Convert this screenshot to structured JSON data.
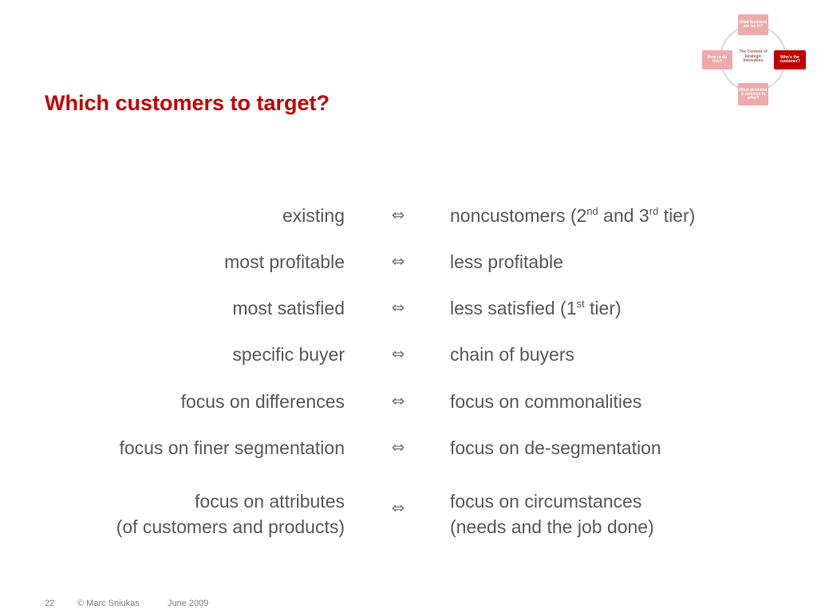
{
  "title": "Which customers to target?",
  "diagram": {
    "top": "What business are we in?",
    "right": "Who's the customer?",
    "bottom": "What products & services to offer?",
    "left": "How to do this?",
    "center": "The Content of Strategic Innovation"
  },
  "rows": [
    {
      "left": "existing",
      "right_parts": [
        "noncustomers (2",
        "nd",
        " and 3",
        "rd",
        " tier)"
      ]
    },
    {
      "left": "most profitable",
      "right_parts": [
        "less profitable"
      ]
    },
    {
      "left": "most satisfied",
      "right_parts": [
        "less satisfied (1",
        "st",
        " tier)"
      ]
    },
    {
      "left": "specific buyer",
      "right_parts": [
        "chain of buyers"
      ]
    },
    {
      "left": "focus on differences",
      "right_parts": [
        "focus on commonalities"
      ]
    },
    {
      "left": "focus on finer segmentation",
      "right_parts": [
        "focus on de-segmentation"
      ]
    },
    {
      "left_lines": [
        "focus on attributes",
        "(of customers and products)"
      ],
      "right_lines": [
        "focus on circumstances",
        "(needs and the job done)"
      ]
    }
  ],
  "arrow_symbol": "⇔",
  "footer": {
    "page": "22",
    "author": "© Marc Sniukas",
    "date": "June 2009"
  }
}
